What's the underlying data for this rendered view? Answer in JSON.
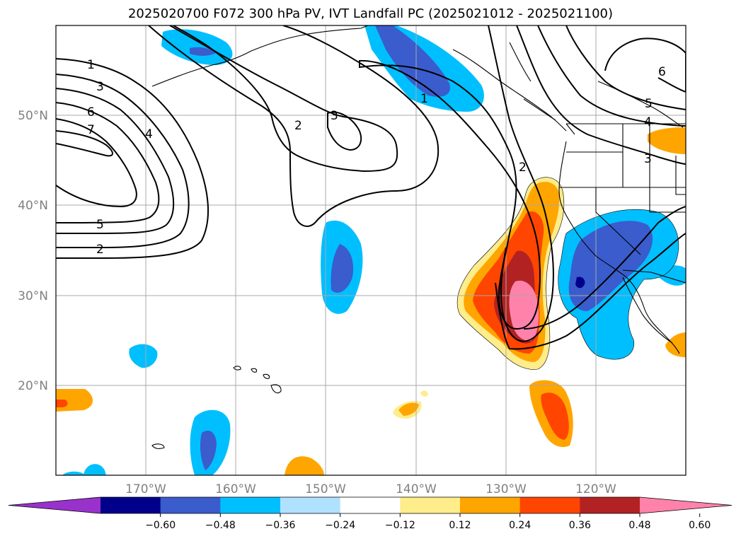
{
  "title": "2025020700 F072 300 hPa PV, IVT Landfall PC (2025021012 - 2025021100)",
  "map": {
    "lat_labels": [
      "50°N",
      "40°N",
      "30°N",
      "20°N"
    ],
    "lon_labels": [
      "170°W",
      "160°W",
      "150°W",
      "140°W",
      "130°W",
      "120°W"
    ],
    "gridlines": true
  },
  "contour_labels": [
    "1",
    "3",
    "6",
    "7",
    "4",
    "5",
    "2",
    "2",
    "3",
    "1",
    "2",
    "6",
    "5",
    "4",
    "3"
  ],
  "colorbar": {
    "ticks": [
      "−0.60",
      "−0.48",
      "−0.36",
      "−0.24",
      "−0.12",
      "0.12",
      "0.24",
      "0.36",
      "0.48",
      "0.60"
    ],
    "colors": [
      "#9932cc",
      "#00008b",
      "#3a5ccc",
      "#00bfff",
      "#b0e2ff",
      "#ffffff",
      "#ffec8b",
      "#ffa500",
      "#ff4500",
      "#b22222",
      "#ff82ab"
    ]
  }
}
